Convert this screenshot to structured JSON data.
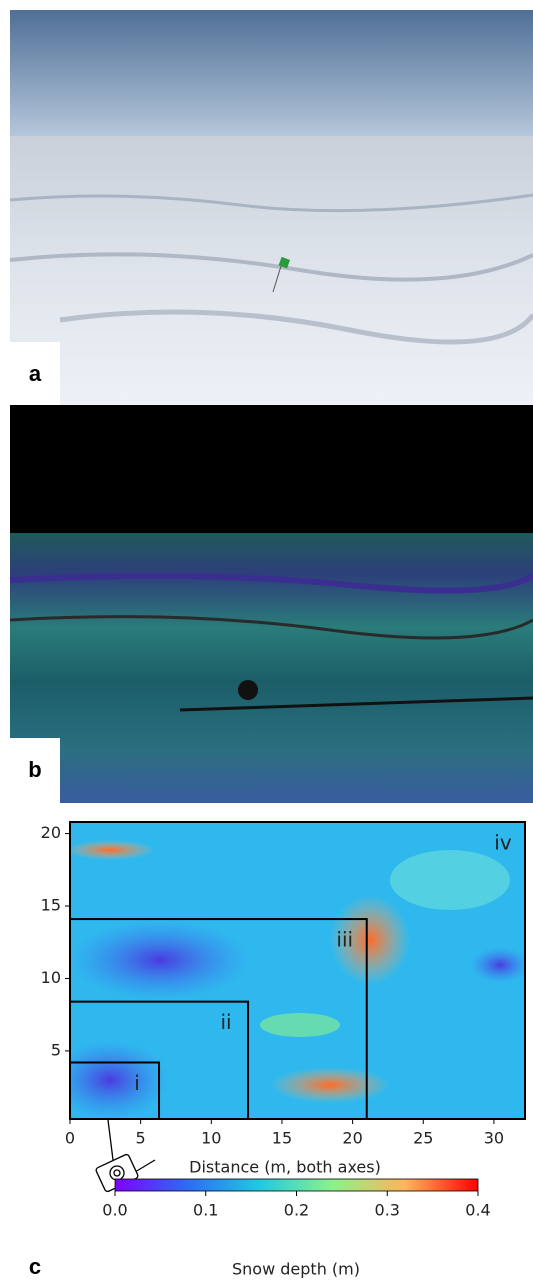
{
  "panels": [
    {
      "label": "a"
    },
    {
      "label": "b"
    }
  ],
  "chart_data": {
    "type": "heatmap",
    "panel_label": "c",
    "xlabel": "Distance (m, both axes)",
    "xlim": [
      0,
      32.2
    ],
    "ylim": [
      0.3,
      20.8
    ],
    "xticks": [
      0,
      5,
      10,
      15,
      20,
      25,
      30
    ],
    "yticks": [
      5,
      10,
      15,
      20
    ],
    "regions": [
      {
        "label": "i",
        "x": [
          0,
          6.3
        ],
        "y": [
          0.3,
          4.2
        ]
      },
      {
        "label": "ii",
        "x": [
          0,
          12.6
        ],
        "y": [
          0.3,
          8.4
        ]
      },
      {
        "label": "iii",
        "x": [
          0,
          21
        ],
        "y": [
          0.3,
          14.1
        ]
      },
      {
        "label": "iv",
        "x": [
          0,
          32.2
        ],
        "y": [
          0.3,
          20.8
        ]
      }
    ],
    "colorbar": {
      "label": "Snow depth (m)",
      "lim": [
        0,
        0.4
      ],
      "ticks": [
        {
          "value": 0,
          "label": "0.0"
        },
        {
          "value": 0.1,
          "label": "0.1"
        },
        {
          "value": 0.2,
          "label": "0.2"
        },
        {
          "value": 0.3,
          "label": "0.3"
        },
        {
          "value": 0.4,
          "label": "0.4"
        }
      ]
    }
  }
}
